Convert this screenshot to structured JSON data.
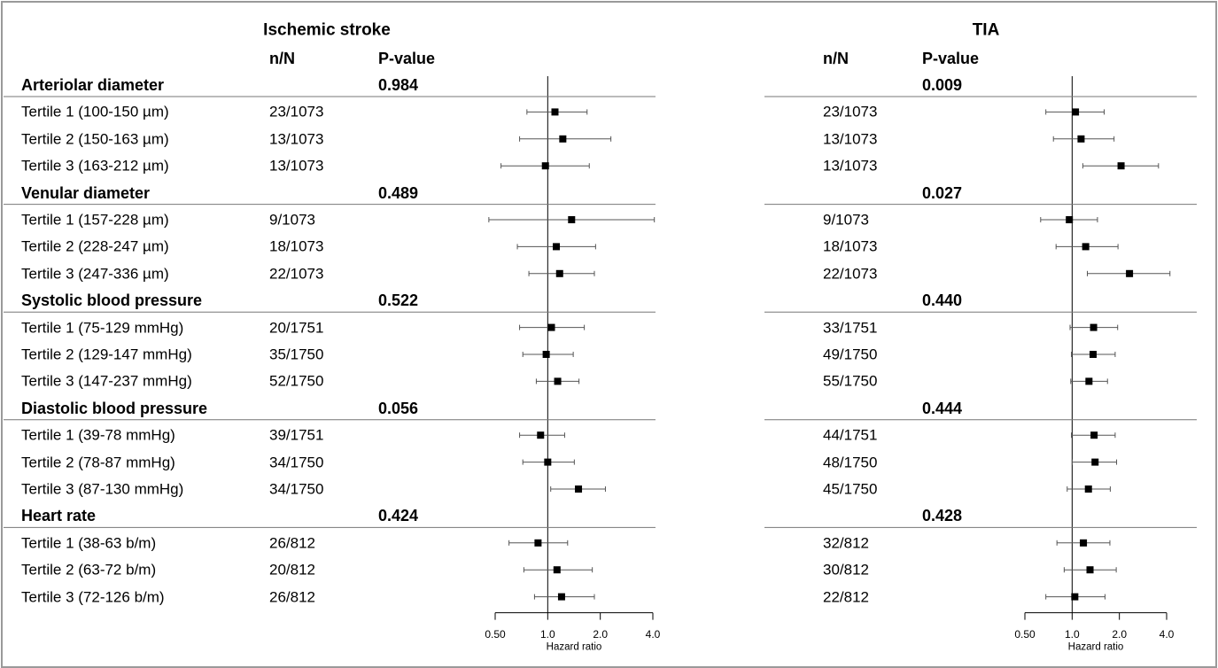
{
  "chart_data": [
    {
      "type": "forest",
      "title": "Ischemic stroke",
      "columns": {
        "n": "n/N",
        "p": "P-value"
      },
      "xlabel": "Hazard ratio",
      "xscale": "log2",
      "xlim": [
        0.5,
        4.0
      ],
      "ticks": [
        "0.50",
        "1.0",
        "2.0",
        "4.0"
      ],
      "reference_line": 1.0,
      "groups": [
        {
          "label": "Arteriolar diameter",
          "p": "0.984",
          "rows": [
            {
              "label": "Tertile 1 (100-150 µm)",
              "n": "23/1073",
              "hr": 1.1,
              "lo": 0.76,
              "hi": 1.68
            },
            {
              "label": "Tertile 2 (150-163 µm)",
              "n": "13/1073",
              "hr": 1.22,
              "lo": 0.69,
              "hi": 2.3
            },
            {
              "label": "Tertile 3 (163-212 µm)",
              "n": "13/1073",
              "hr": 0.97,
              "lo": 0.54,
              "hi": 1.73
            }
          ]
        },
        {
          "label": "Venular diameter",
          "p": "0.489",
          "rows": [
            {
              "label": "Tertile 1 (157-228 µm)",
              "n": "9/1073",
              "hr": 1.37,
              "lo": 0.46,
              "hi": 4.08
            },
            {
              "label": "Tertile 2 (228-247 µm)",
              "n": "18/1073",
              "hr": 1.12,
              "lo": 0.67,
              "hi": 1.88
            },
            {
              "label": "Tertile 3 (247-336 µm)",
              "n": "22/1073",
              "hr": 1.17,
              "lo": 0.78,
              "hi": 1.85
            }
          ]
        },
        {
          "label": "Systolic blood pressure",
          "p": "0.522",
          "rows": [
            {
              "label": "Tertile 1 (75-129 mmHg)",
              "n": "20/1751",
              "hr": 1.05,
              "lo": 0.69,
              "hi": 1.62
            },
            {
              "label": "Tertile 2 (129-147 mmHg)",
              "n": "35/1750",
              "hr": 0.98,
              "lo": 0.72,
              "hi": 1.4
            },
            {
              "label": "Tertile 3 (147-237 mmHg)",
              "n": "52/1750",
              "hr": 1.14,
              "lo": 0.86,
              "hi": 1.51
            }
          ]
        },
        {
          "label": "Diastolic blood pressure",
          "p": "0.056",
          "rows": [
            {
              "label": "Tertile 1 (39-78 mmHg)",
              "n": "39/1751",
              "hr": 0.91,
              "lo": 0.69,
              "hi": 1.25
            },
            {
              "label": "Tertile 2 (78-87 mmHg)",
              "n": "34/1750",
              "hr": 1.0,
              "lo": 0.72,
              "hi": 1.42
            },
            {
              "label": "Tertile 3 (87-130 mmHg)",
              "n": "34/1750",
              "hr": 1.5,
              "lo": 1.04,
              "hi": 2.14
            }
          ]
        },
        {
          "label": "Heart rate",
          "p": "0.424",
          "rows": [
            {
              "label": "Tertile 1 (38-63 b/m)",
              "n": "26/812",
              "hr": 0.88,
              "lo": 0.6,
              "hi": 1.3
            },
            {
              "label": "Tertile 2 (63-72 b/m)",
              "n": "20/812",
              "hr": 1.13,
              "lo": 0.73,
              "hi": 1.8
            },
            {
              "label": "Tertile 3 (72-126 b/m)",
              "n": "26/812",
              "hr": 1.2,
              "lo": 0.84,
              "hi": 1.85
            }
          ]
        }
      ]
    },
    {
      "type": "forest",
      "title": "TIA",
      "columns": {
        "n": "n/N",
        "p": "P-value"
      },
      "xlabel": "Hazard ratio",
      "xscale": "log2",
      "xlim": [
        0.5,
        4.0
      ],
      "ticks": [
        "0.50",
        "1.0",
        "2.0",
        "4.0"
      ],
      "reference_line": 1.0,
      "groups": [
        {
          "label": "",
          "p": "0.009",
          "rows": [
            {
              "label": "",
              "n": "23/1073",
              "hr": 1.05,
              "lo": 0.68,
              "hi": 1.6
            },
            {
              "label": "",
              "n": "13/1073",
              "hr": 1.14,
              "lo": 0.76,
              "hi": 1.85
            },
            {
              "label": "",
              "n": "13/1073",
              "hr": 2.05,
              "lo": 1.17,
              "hi": 3.55
            }
          ]
        },
        {
          "label": "",
          "p": "0.027",
          "rows": [
            {
              "label": "",
              "n": "9/1073",
              "hr": 0.96,
              "lo": 0.63,
              "hi": 1.45
            },
            {
              "label": "",
              "n": "18/1073",
              "hr": 1.22,
              "lo": 0.79,
              "hi": 1.96
            },
            {
              "label": "",
              "n": "22/1073",
              "hr": 2.32,
              "lo": 1.25,
              "hi": 4.2
            }
          ]
        },
        {
          "label": "",
          "p": "0.440",
          "rows": [
            {
              "label": "",
              "n": "33/1751",
              "hr": 1.37,
              "lo": 0.97,
              "hi": 1.95
            },
            {
              "label": "",
              "n": "49/1750",
              "hr": 1.36,
              "lo": 0.99,
              "hi": 1.88
            },
            {
              "label": "",
              "n": "55/1750",
              "hr": 1.28,
              "lo": 0.98,
              "hi": 1.68
            }
          ]
        },
        {
          "label": "",
          "p": "0.444",
          "rows": [
            {
              "label": "",
              "n": "44/1751",
              "hr": 1.38,
              "lo": 0.99,
              "hi": 1.88
            },
            {
              "label": "",
              "n": "48/1750",
              "hr": 1.4,
              "lo": 1.0,
              "hi": 1.92
            },
            {
              "label": "",
              "n": "45/1750",
              "hr": 1.27,
              "lo": 0.93,
              "hi": 1.75
            }
          ]
        },
        {
          "label": "",
          "p": "0.428",
          "rows": [
            {
              "label": "",
              "n": "32/812",
              "hr": 1.18,
              "lo": 0.8,
              "hi": 1.74
            },
            {
              "label": "",
              "n": "30/812",
              "hr": 1.3,
              "lo": 0.89,
              "hi": 1.91
            },
            {
              "label": "",
              "n": "22/812",
              "hr": 1.04,
              "lo": 0.68,
              "hi": 1.62
            }
          ]
        }
      ]
    }
  ]
}
